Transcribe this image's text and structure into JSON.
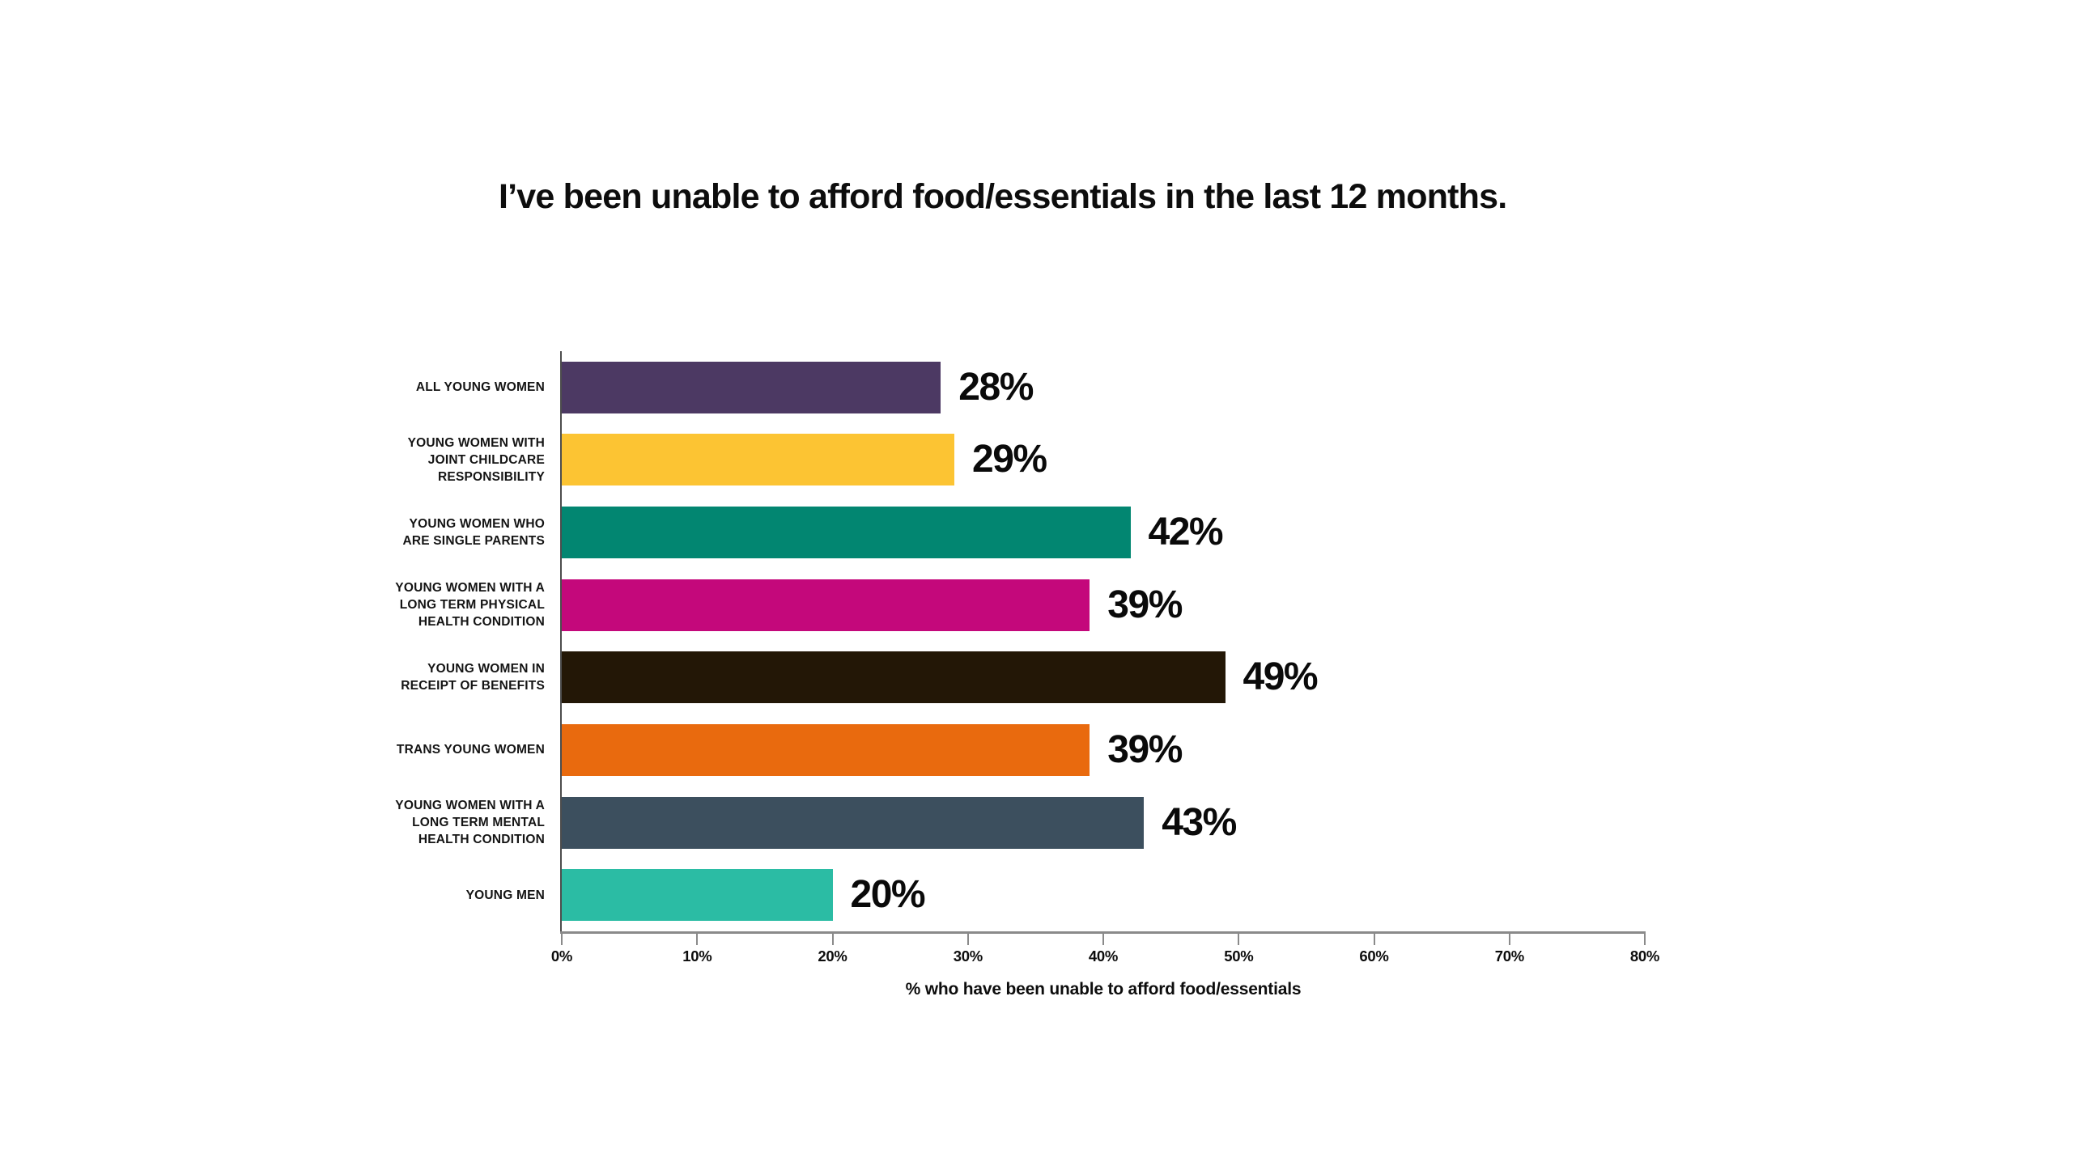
{
  "page": {
    "background": "#ffffff"
  },
  "header": {
    "title": "I’ve been unable to afford food/essentials in the last 12 months.",
    "logo": {
      "name": "quote-marks-logo",
      "background": "#2CBCA4",
      "mark_color": "#ffffff"
    }
  },
  "chart_data": {
    "type": "bar",
    "orientation": "horizontal",
    "title": "I’ve been unable to afford food/essentials in the last 12 months.",
    "xlabel": "% who have been unable to afford food/essentials",
    "ylabel": "",
    "xlim": [
      0,
      80
    ],
    "x_tick_labels": [
      "0%",
      "10%",
      "20%",
      "30%",
      "40%",
      "50%",
      "60%",
      "70%",
      "80%"
    ],
    "grid": false,
    "legend": false,
    "categories": [
      "ALL YOUNG WOMEN",
      "YOUNG WOMEN WITH JOINT CHILDCARE RESPONSIBILITY",
      "YOUNG WOMEN WHO ARE SINGLE PARENTS",
      "YOUNG WOMEN WITH A LONG TERM PHYSICAL HEALTH CONDITION",
      "YOUNG WOMEN IN RECEIPT OF BENEFITS",
      "TRANS YOUNG WOMEN",
      "YOUNG WOMEN WITH A LONG TERM MENTAL HEALTH CONDITION",
      "YOUNG MEN"
    ],
    "category_lines": [
      [
        "ALL YOUNG WOMEN"
      ],
      [
        "YOUNG WOMEN WITH",
        "JOINT CHILDCARE",
        "RESPONSIBILITY"
      ],
      [
        "YOUNG WOMEN WHO",
        "ARE SINGLE PARENTS"
      ],
      [
        "YOUNG WOMEN WITH A",
        "LONG TERM PHYSICAL",
        "HEALTH CONDITION"
      ],
      [
        "YOUNG WOMEN IN",
        "RECEIPT OF BENEFITS"
      ],
      [
        "TRANS YOUNG WOMEN"
      ],
      [
        "YOUNG WOMEN WITH A",
        "LONG TERM MENTAL",
        "HEALTH CONDITION"
      ],
      [
        "YOUNG MEN"
      ]
    ],
    "values": [
      28,
      29,
      42,
      39,
      49,
      39,
      43,
      20
    ],
    "value_labels": [
      "28%",
      "29%",
      "42%",
      "39%",
      "49%",
      "39%",
      "43%",
      "20%"
    ],
    "bar_colors": [
      "#4C3963",
      "#FCC433",
      "#028671",
      "#C4087B",
      "#231706",
      "#E96A0E",
      "#3C4F5E",
      "#2BBCA4"
    ]
  },
  "colors": {
    "accent_teal": "#2CBCA4",
    "x_axis_line": "#8A8A8A",
    "y_axis_line": "#4D4D4D",
    "text": "#0D0D0D"
  }
}
